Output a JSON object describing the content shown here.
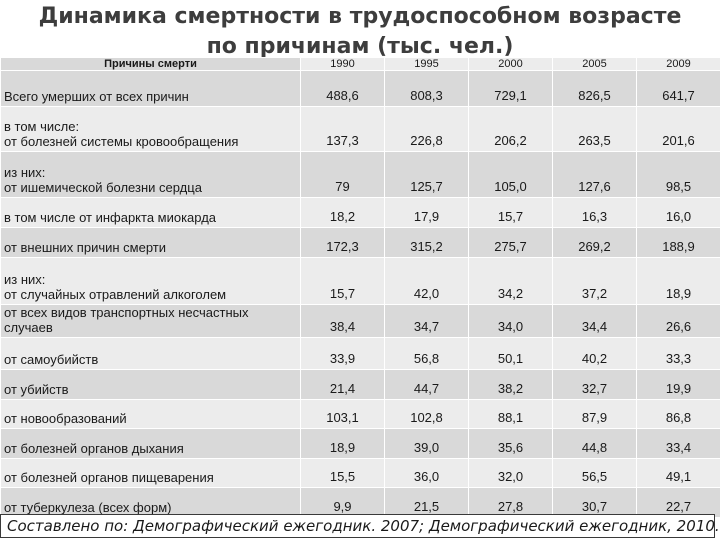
{
  "title": "Динамика смертности в трудоспособном возрасте по причинам (тыс. чел.)",
  "header": {
    "label": "Причины смерти",
    "years": [
      "1990",
      "1995",
      "2000",
      "2005",
      "2009"
    ]
  },
  "rows": [
    {
      "pre": "",
      "label": "Всего умерших от всех причин",
      "values": [
        "488,6",
        "808,3",
        "729,1",
        "826,5",
        "641,7"
      ]
    },
    {
      "pre": "в том числе:",
      "label": "от болезней системы кровообращения",
      "values": [
        "137,3",
        "226,8",
        "206,2",
        "263,5",
        "201,6"
      ]
    },
    {
      "pre": "из них:",
      "label": "от ишемической болезни сердца",
      "values": [
        "79",
        "125,7",
        "105,0",
        "127,6",
        "98,5"
      ]
    },
    {
      "pre": "",
      "label": "в том числе от инфаркта миокарда",
      "values": [
        "18,2",
        "17,9",
        "15,7",
        "16,3",
        "16,0"
      ]
    },
    {
      "pre": "",
      "label": "от внешних причин смерти",
      "values": [
        "172,3",
        "315,2",
        "275,7",
        "269,2",
        "188,9"
      ]
    },
    {
      "pre": "из них:",
      "label": "от случайных отравлений алкоголем",
      "values": [
        "15,7",
        "42,0",
        "34,2",
        "37,2",
        "18,9"
      ]
    },
    {
      "pre": "",
      "label": "от всех видов транспортных несчастных случаев",
      "values": [
        "38,4",
        "34,7",
        "34,0",
        "34,4",
        "26,6"
      ]
    },
    {
      "pre": "",
      "label": "от самоубийств",
      "values": [
        "33,9",
        "56,8",
        "50,1",
        "40,2",
        "33,3"
      ]
    },
    {
      "pre": "",
      "label": "от убийств",
      "values": [
        "21,4",
        "44,7",
        "38,2",
        "32,7",
        "19,9"
      ]
    },
    {
      "pre": "",
      "label": "от новообразований",
      "values": [
        "103,1",
        "102,8",
        "88,1",
        "87,9",
        "86,8"
      ]
    },
    {
      "pre": "",
      "label": "от болезней органов дыхания",
      "values": [
        "18,9",
        "39,0",
        "35,6",
        "44,8",
        "33,4"
      ]
    },
    {
      "pre": "",
      "label": "от болезней органов пищеварения",
      "values": [
        "15,5",
        "36,0",
        "32,0",
        "56,5",
        "49,1"
      ]
    },
    {
      "pre": "",
      "label": "от туберкулеза (всех форм)",
      "values": [
        "9,9",
        "21,5",
        "27,8",
        "30,7",
        "22,7"
      ]
    }
  ],
  "note": "Составлено по: Демографический ежегодник. 2007; Демографический ежегодник, 2010."
}
